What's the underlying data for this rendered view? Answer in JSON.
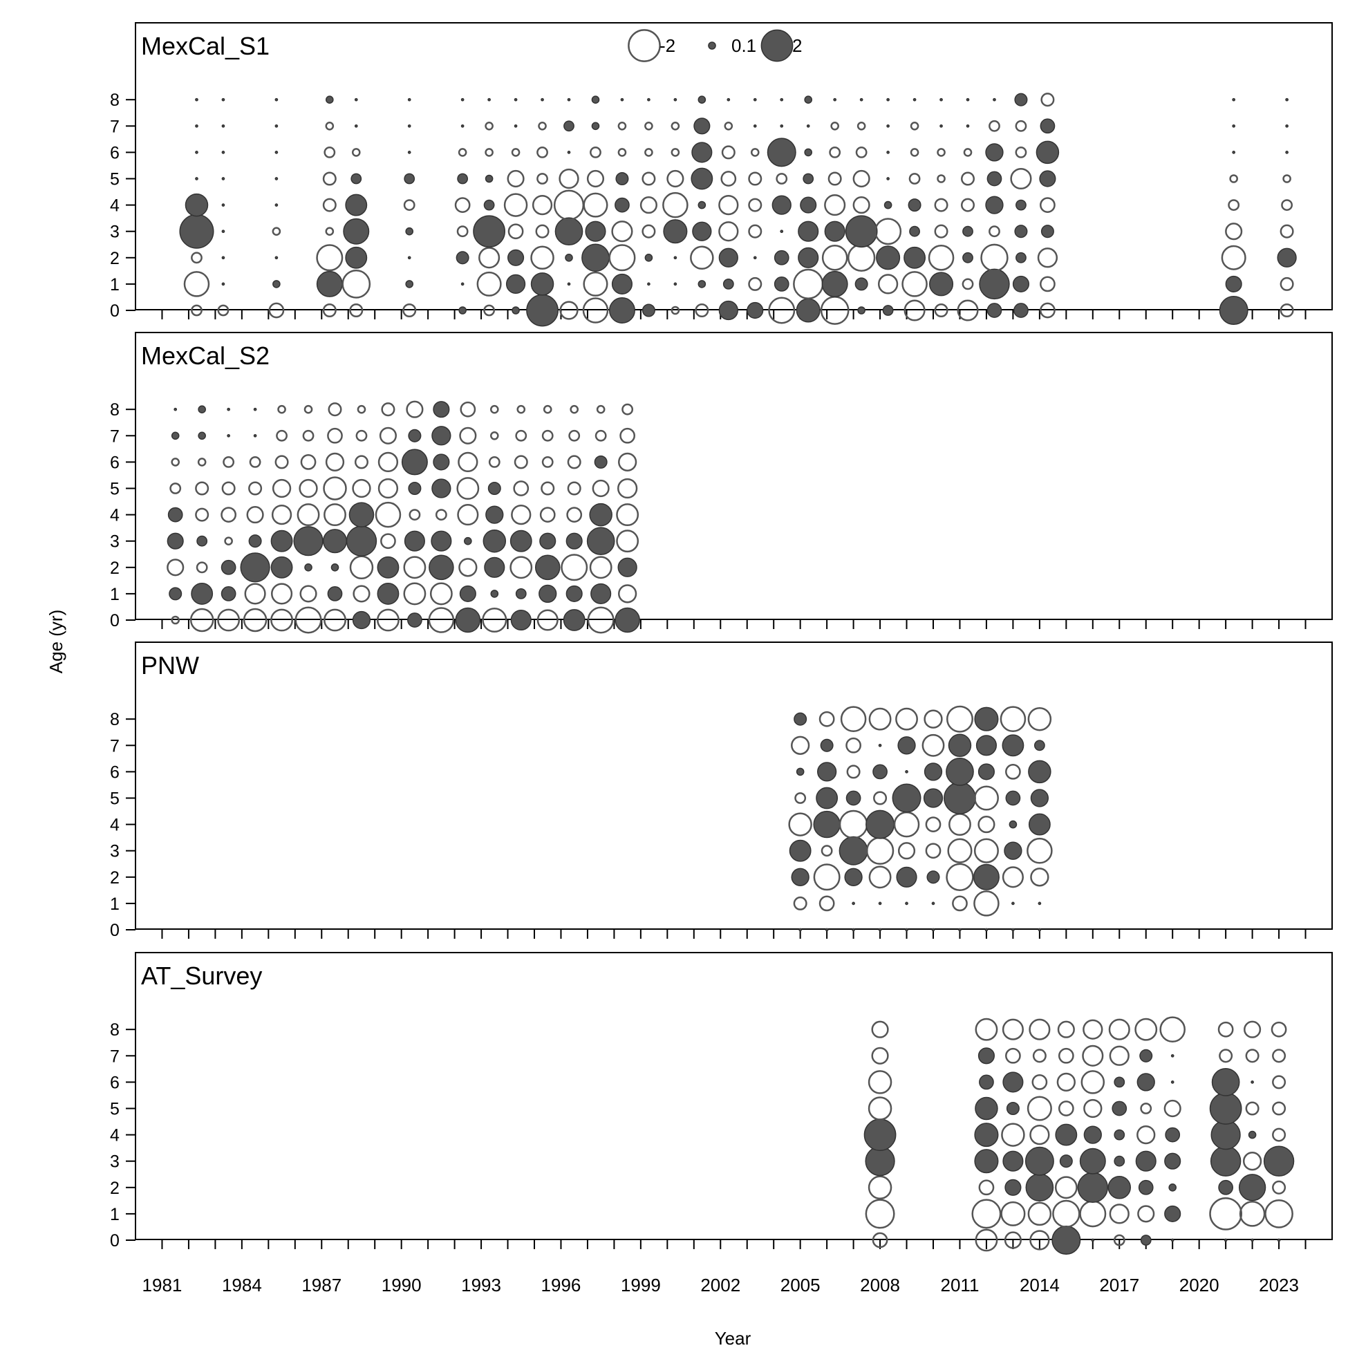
{
  "chart_data": {
    "type": "scatter",
    "subtype": "bubble",
    "xlabel": "Year",
    "ylabel": "Age (yr)",
    "x_ticks": [
      1981,
      1984,
      1987,
      1990,
      1993,
      1996,
      1999,
      2002,
      2005,
      2008,
      2011,
      2014,
      2017,
      2020,
      2023
    ],
    "x_range": [
      1980,
      2025
    ],
    "y_ticks": [
      0,
      1,
      2,
      3,
      4,
      5,
      6,
      7,
      8
    ],
    "legend": {
      "placement": "top-center",
      "entries": [
        {
          "label": "-2",
          "value": -2
        },
        {
          "label": "0.1",
          "value": 0.1
        },
        {
          "label": "2",
          "value": 2
        }
      ]
    },
    "colors": {
      "positive": "#555555",
      "negative_stroke": "#555555",
      "overlay": "#888888"
    },
    "panels": [
      {
        "title": "MexCal_S1",
        "series": [
          {
            "x": 1982.3,
            "ages": [
              -0.2,
              -1.2,
              -0.2,
              2.3,
              1.0,
              0.0,
              0.0,
              0.0,
              0.0
            ]
          },
          {
            "x": 1983.3,
            "ages": [
              -0.2,
              0.0,
              0.0,
              0.0,
              0.0,
              0.0,
              0.0,
              0.0,
              0.0
            ]
          },
          {
            "x": 1985.3,
            "ages": [
              -0.4,
              0.1,
              0.0,
              -0.1,
              0.0,
              0.0,
              0.0,
              0.0,
              0.0
            ]
          },
          {
            "x": 1987.3,
            "ages": [
              -0.3,
              1.3,
              -1.3,
              -0.1,
              -0.3,
              -0.3,
              -0.2,
              -0.1,
              0.1
            ]
          },
          {
            "x": 1988.3,
            "ages": [
              -0.3,
              -1.5,
              0.9,
              1.3,
              0.9,
              0.2,
              -0.1,
              0.0,
              0.0
            ]
          },
          {
            "x": 1990.3,
            "ages": [
              -0.3,
              0.1,
              0.0,
              0.1,
              -0.2,
              0.2,
              0.0,
              0.0,
              0.0
            ]
          },
          {
            "x": 1992.3,
            "ages": [
              0.1,
              0.0,
              0.3,
              -0.2,
              -0.4,
              0.2,
              -0.1,
              0.0,
              0.0
            ]
          },
          {
            "x": 1993.3,
            "ages": [
              -0.2,
              -1.1,
              -0.8,
              2.0,
              0.2,
              0.1,
              -0.1,
              -0.1,
              0.0
            ]
          },
          {
            "x": 1994.3,
            "ages": [
              0.1,
              0.7,
              0.5,
              -0.4,
              -1.0,
              -0.5,
              -0.1,
              0.0,
              0.0
            ]
          },
          {
            "x": 1995.3,
            "ages": [
              2.0,
              1.0,
              -1.0,
              -0.3,
              -0.7,
              -0.2,
              -0.2,
              -0.1,
              0.0
            ]
          },
          {
            "x": 1996.3,
            "ages": [
              -0.6,
              0.0,
              0.1,
              1.5,
              -1.7,
              -0.7,
              0.0,
              0.2,
              0.0
            ]
          },
          {
            "x": 1997.3,
            "ages": [
              -1.2,
              -1.1,
              1.5,
              0.8,
              -1.1,
              -0.5,
              -0.2,
              0.1,
              0.1
            ]
          },
          {
            "x": 1998.3,
            "ages": [
              1.3,
              0.8,
              -1.3,
              -0.8,
              0.4,
              0.3,
              -0.1,
              -0.1,
              0.0
            ]
          },
          {
            "x": 1999.3,
            "ages": [
              0.3,
              0.0,
              0.1,
              -0.3,
              -0.5,
              -0.3,
              -0.1,
              -0.1,
              0.0
            ]
          },
          {
            "x": 2000.3,
            "ages": [
              -0.1,
              0.0,
              0.0,
              1.1,
              -1.2,
              -0.5,
              -0.1,
              -0.1,
              0.0
            ]
          },
          {
            "x": 2001.3,
            "ages": [
              -0.3,
              0.1,
              -1.0,
              0.7,
              0.1,
              0.9,
              0.8,
              0.5,
              0.1
            ]
          },
          {
            "x": 2002.3,
            "ages": [
              0.7,
              0.2,
              0.7,
              -0.7,
              -0.7,
              -0.4,
              -0.3,
              -0.1,
              0.0
            ]
          },
          {
            "x": 2003.3,
            "ages": [
              0.5,
              -0.3,
              0.0,
              -0.3,
              -0.3,
              -0.3,
              -0.1,
              0.0,
              0.0
            ]
          },
          {
            "x": 2004.3,
            "ages": [
              -1.3,
              0.4,
              0.4,
              0.0,
              0.7,
              -0.2,
              1.6,
              0.0,
              0.0
            ]
          },
          {
            "x": 2005.3,
            "ages": [
              1.1,
              -1.7,
              0.8,
              0.8,
              0.5,
              0.2,
              0.1,
              0.0,
              0.1
            ]
          },
          {
            "x": 2006.3,
            "ages": [
              -1.5,
              1.3,
              -1.2,
              0.8,
              -0.8,
              -0.3,
              -0.2,
              -0.1,
              0.0
            ]
          },
          {
            "x": 2007.3,
            "ages": [
              0.1,
              0.3,
              -1.4,
              2.0,
              -0.5,
              -0.5,
              -0.2,
              -0.1,
              0.0
            ]
          },
          {
            "x": 2008.3,
            "ages": [
              0.2,
              -0.7,
              1.1,
              -1.3,
              0.1,
              0.0,
              0.0,
              0.0,
              0.0
            ]
          },
          {
            "x": 2009.3,
            "ages": [
              -0.8,
              -1.2,
              0.9,
              0.2,
              0.3,
              -0.2,
              -0.1,
              -0.1,
              0.0
            ]
          },
          {
            "x": 2010.3,
            "ages": [
              -0.3,
              1.1,
              -1.2,
              -0.3,
              -0.3,
              -0.1,
              -0.1,
              0.0,
              0.0
            ]
          },
          {
            "x": 2011.3,
            "ages": [
              -0.8,
              -0.2,
              0.2,
              0.2,
              -0.3,
              -0.3,
              -0.1,
              0.0,
              0.0
            ]
          },
          {
            "x": 2012.3,
            "ages": [
              0.4,
              1.8,
              -1.4,
              -0.2,
              0.6,
              0.4,
              0.6,
              -0.2,
              0.0
            ]
          },
          {
            "x": 2013.3,
            "ages": [
              0.4,
              0.5,
              0.2,
              0.3,
              0.2,
              -0.8,
              -0.2,
              -0.2,
              0.3
            ]
          },
          {
            "x": 2014.3,
            "ages": [
              -0.4,
              -0.4,
              -0.7,
              0.3,
              -0.4,
              0.5,
              1.0,
              0.4,
              -0.3
            ]
          },
          {
            "x": 2021.3,
            "ages": [
              1.6,
              0.5,
              -1.1,
              -0.5,
              -0.2,
              -0.1,
              0.0,
              0.0,
              0.0
            ]
          },
          {
            "x": 2023.3,
            "ages": [
              -0.3,
              -0.3,
              0.7,
              -0.3,
              -0.2,
              -0.1,
              0.0,
              0.0,
              0.0
            ]
          }
        ]
      },
      {
        "title": "MexCal_S2",
        "series": [
          {
            "x": 1981.5,
            "ages": [
              -0.1,
              0.3,
              -0.5,
              0.5,
              0.4,
              -0.2,
              -0.1,
              0.1,
              0.0
            ]
          },
          {
            "x": 1982.5,
            "ages": [
              -1.0,
              0.9,
              -0.2,
              0.2,
              -0.3,
              -0.3,
              -0.1,
              0.1,
              0.1
            ]
          },
          {
            "x": 1983.5,
            "ages": [
              -0.9,
              0.4,
              0.4,
              -0.1,
              -0.4,
              -0.3,
              -0.2,
              0.0,
              0.0
            ]
          },
          {
            "x": 1984.5,
            "ages": [
              -1.0,
              -0.8,
              1.7,
              0.3,
              -0.5,
              -0.3,
              -0.2,
              0.0,
              0.0
            ]
          },
          {
            "x": 1985.5,
            "ages": [
              -0.9,
              -0.8,
              0.9,
              0.9,
              -0.7,
              -0.6,
              -0.3,
              -0.2,
              -0.1
            ]
          },
          {
            "x": 1986.5,
            "ages": [
              -1.3,
              -0.5,
              0.1,
              1.7,
              -0.9,
              -0.6,
              -0.4,
              -0.2,
              -0.1
            ]
          },
          {
            "x": 1987.5,
            "ages": [
              -0.9,
              0.4,
              0.1,
              1.1,
              -0.9,
              -1.0,
              -0.6,
              -0.4,
              -0.3
            ]
          },
          {
            "x": 1988.5,
            "ages": [
              0.6,
              -0.5,
              -1.0,
              1.8,
              1.2,
              -0.6,
              -0.3,
              -0.2,
              -0.1
            ]
          },
          {
            "x": 1989.5,
            "ages": [
              -0.9,
              0.9,
              0.9,
              -0.4,
              -1.2,
              -0.7,
              -0.7,
              -0.5,
              -0.3
            ]
          },
          {
            "x": 1990.5,
            "ages": [
              0.4,
              -0.9,
              -0.9,
              0.8,
              -0.2,
              0.3,
              1.3,
              0.3,
              -0.5
            ]
          },
          {
            "x": 1991.5,
            "ages": [
              -1.2,
              -0.9,
              1.2,
              0.8,
              -0.2,
              0.7,
              0.5,
              0.7,
              0.5
            ]
          },
          {
            "x": 1992.5,
            "ages": [
              1.2,
              0.5,
              -0.6,
              0.1,
              -0.8,
              -0.9,
              -0.7,
              -0.5,
              -0.4
            ]
          },
          {
            "x": 1993.5,
            "ages": [
              -1.1,
              0.1,
              0.8,
              1.0,
              0.6,
              0.3,
              -0.2,
              -0.1,
              -0.1
            ]
          },
          {
            "x": 1994.5,
            "ages": [
              0.8,
              0.2,
              -0.9,
              0.9,
              -0.7,
              -0.4,
              -0.3,
              -0.2,
              -0.1
            ]
          },
          {
            "x": 1995.5,
            "ages": [
              -0.8,
              0.6,
              1.2,
              0.5,
              -0.4,
              -0.3,
              -0.2,
              -0.2,
              -0.1
            ]
          },
          {
            "x": 1996.5,
            "ages": [
              0.9,
              0.5,
              -1.3,
              0.5,
              -0.4,
              -0.3,
              -0.3,
              -0.2,
              -0.1
            ]
          },
          {
            "x": 1997.5,
            "ages": [
              -1.3,
              0.8,
              -0.9,
              1.5,
              1.0,
              -0.5,
              0.3,
              -0.2,
              -0.1
            ]
          },
          {
            "x": 1998.5,
            "ages": [
              1.2,
              -0.6,
              0.7,
              -0.9,
              -0.9,
              -0.7,
              -0.6,
              -0.4,
              -0.2
            ]
          }
        ]
      },
      {
        "title": "PNW",
        "series": [
          {
            "x": 2005.0,
            "ages": [
              0.0,
              -0.3,
              0.6,
              0.9,
              -1.0,
              -0.2,
              0.1,
              -0.6,
              0.3
            ]
          },
          {
            "x": 2006.0,
            "ages": [
              0.0,
              -0.4,
              -1.3,
              -0.2,
              1.4,
              0.9,
              0.7,
              0.3,
              -0.4
            ]
          },
          {
            "x": 2007.0,
            "ages": [
              0.0,
              0.0,
              0.6,
              1.6,
              -1.5,
              0.4,
              -0.3,
              -0.4,
              -1.2
            ]
          },
          {
            "x": 2008.0,
            "ages": [
              0.0,
              0.0,
              -0.9,
              -1.4,
              1.6,
              -0.3,
              0.4,
              0.0,
              -0.9
            ]
          },
          {
            "x": 2009.0,
            "ages": [
              0.0,
              0.0,
              0.8,
              -0.5,
              -1.2,
              1.6,
              0.0,
              0.6,
              -0.9
            ]
          },
          {
            "x": 2010.0,
            "ages": [
              0.0,
              0.0,
              0.3,
              -0.4,
              -0.4,
              0.7,
              0.6,
              -0.9,
              -0.6
            ]
          },
          {
            "x": 2011.0,
            "ages": [
              0.0,
              -0.4,
              -1.4,
              -1.1,
              -0.9,
              2.0,
              1.5,
              1.0,
              -1.3
            ]
          },
          {
            "x": 2012.0,
            "ages": [
              0.0,
              -1.2,
              1.3,
              -1.1,
              -0.5,
              -1.1,
              0.5,
              0.8,
              1.1
            ]
          },
          {
            "x": 2013.0,
            "ages": [
              0.0,
              0.0,
              -0.8,
              0.6,
              0.1,
              0.4,
              -0.4,
              0.9,
              -1.2
            ]
          },
          {
            "x": 2014.0,
            "ages": [
              0.0,
              0.0,
              -0.6,
              -1.2,
              0.9,
              0.6,
              1.0,
              0.2,
              -1.0
            ]
          }
        ]
      },
      {
        "title": "AT_Survey",
        "series": [
          {
            "x": 2008.0,
            "ages": [
              -0.4,
              -1.6,
              -1.0,
              1.7,
              2.0,
              -1.0,
              -1.0,
              -0.5,
              -0.5
            ]
          },
          {
            "x": 2012.0,
            "ages": [
              -0.9,
              -1.6,
              -0.4,
              1.1,
              1.1,
              1.0,
              0.4,
              0.5,
              -0.9
            ]
          },
          {
            "x": 2013.0,
            "ages": [
              -0.5,
              -1.1,
              0.5,
              0.8,
              -1.0,
              0.3,
              0.8,
              -0.4,
              -0.8
            ]
          },
          {
            "x": 2014.0,
            "ages": [
              -0.7,
              -1.0,
              1.5,
              1.6,
              -0.7,
              -1.1,
              -0.4,
              -0.3,
              -0.8
            ]
          },
          {
            "x": 2015.0,
            "ages": [
              1.6,
              -1.4,
              -0.9,
              0.3,
              0.9,
              -0.4,
              -0.6,
              -0.4,
              -0.5
            ]
          },
          {
            "x": 2016.0,
            "ages": [
              0.0,
              -1.3,
              1.8,
              1.3,
              0.6,
              -0.6,
              -1.0,
              -0.8,
              -0.7
            ]
          },
          {
            "x": 2017.0,
            "ages": [
              -0.2,
              -0.7,
              1.0,
              0.2,
              0.2,
              0.4,
              0.2,
              -0.7,
              -0.8
            ]
          },
          {
            "x": 2018.0,
            "ages": [
              0.2,
              -0.5,
              0.4,
              0.8,
              -0.6,
              -0.2,
              0.6,
              0.3,
              -0.9
            ]
          },
          {
            "x": 2019.0,
            "ages": [
              0.0,
              0.5,
              0.1,
              0.5,
              0.4,
              -0.5,
              0.0,
              0.0,
              -1.2
            ]
          },
          {
            "x": 2021.0,
            "ages": [
              0.0,
              -2.0,
              0.4,
              1.8,
              1.7,
              2.0,
              1.5,
              -0.3,
              -0.4
            ]
          },
          {
            "x": 2022.0,
            "ages": [
              0.0,
              -1.2,
              1.4,
              -0.6,
              0.1,
              -0.3,
              0.0,
              -0.3,
              -0.5
            ]
          },
          {
            "x": 2023.0,
            "ages": [
              0.0,
              -1.5,
              -0.3,
              1.8,
              -0.3,
              -0.3,
              -0.3,
              -0.3,
              -0.4
            ]
          }
        ]
      }
    ]
  }
}
